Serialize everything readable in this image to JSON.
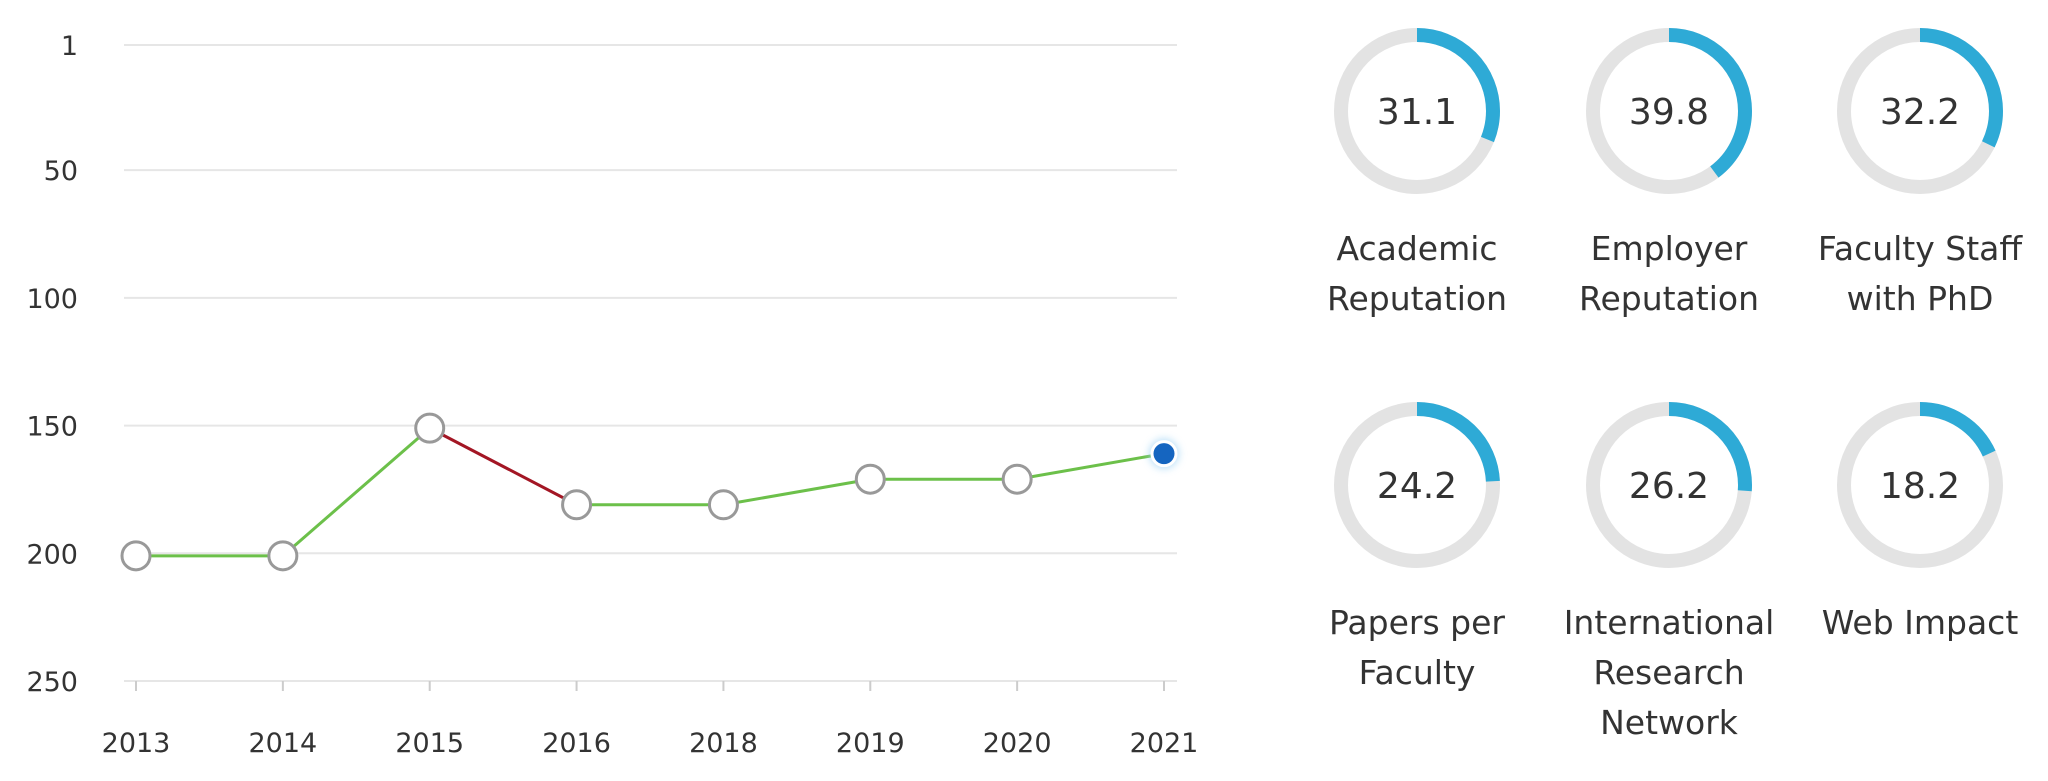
{
  "chart_data": {
    "type": "line",
    "x": [
      "2013",
      "2014",
      "2015",
      "2016",
      "2018",
      "2019",
      "2020",
      "2021"
    ],
    "series": [
      {
        "values": [
          201,
          201,
          151,
          181,
          181,
          171,
          171,
          161
        ]
      }
    ],
    "y_ticks": [
      "1",
      "50",
      "100",
      "150",
      "200",
      "250"
    ],
    "ylim": [
      1,
      250
    ],
    "y_reversed": true,
    "grid": true,
    "colors": {
      "up": "#6cc04a",
      "down": "#a31624",
      "current": "#1565c0",
      "marker_stroke": "#999999"
    }
  },
  "metrics": {
    "ring_colors": {
      "track": "#e3e3e3",
      "fill": "#2eaad6"
    },
    "items": [
      {
        "value": "31.1",
        "label": [
          "Academic",
          "Reputation"
        ]
      },
      {
        "value": "39.8",
        "label": [
          "Employer",
          "Reputation"
        ]
      },
      {
        "value": "32.2",
        "label": [
          "Faculty Staff",
          "with PhD"
        ]
      },
      {
        "value": "24.2",
        "label": [
          "Papers per",
          "Faculty"
        ]
      },
      {
        "value": "26.2",
        "label": [
          "International",
          "Research",
          "Network"
        ]
      },
      {
        "value": "18.2",
        "label": [
          "Web Impact"
        ]
      }
    ]
  }
}
